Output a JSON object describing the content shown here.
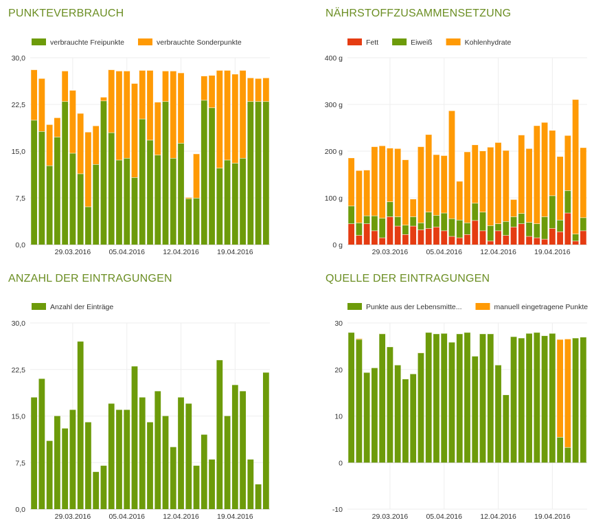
{
  "colors": {
    "green": "#6d9b0a",
    "orange": "#ff9a05",
    "red": "#e53c12",
    "title": "#6b8e23",
    "grid": "#eeeeee",
    "axis_text": "#333333"
  },
  "charts": [
    {
      "panel_title": "PUNKTEVERBRAUCH",
      "chart_data": {
        "type": "bar",
        "stacked": true,
        "y_ticks": [
          "0,0",
          "7,5",
          "15,0",
          "22,5",
          "30,0"
        ],
        "ylim": [
          0,
          30
        ],
        "x_ticks": [
          {
            "index": 5,
            "label": "29.03.2016"
          },
          {
            "index": 12,
            "label": "05.04.2016"
          },
          {
            "index": 19,
            "label": "12.04.2016"
          },
          {
            "index": 26,
            "label": "19.04.2016"
          }
        ],
        "series": [
          {
            "name": "verbrauchte Freipunkte",
            "color": "#6d9b0a",
            "values": [
              20.0,
              18.2,
              12.7,
              17.3,
              23.0,
              14.7,
              11.4,
              6.1,
              12.9,
              23.1,
              18.0,
              13.6,
              13.9,
              10.8,
              20.2,
              16.8,
              14.4,
              23.0,
              13.9,
              16.3,
              7.4,
              7.5,
              23.2,
              22.0,
              12.3,
              13.6,
              13.1,
              13.9,
              23.0,
              23.0,
              23.0
            ]
          },
          {
            "name": "verbrauchte Sonderpunkte",
            "color": "#ff9a05",
            "values": [
              8.1,
              8.5,
              6.6,
              3.1,
              4.9,
              10.1,
              9.7,
              12.0,
              6.2,
              0.6,
              10.1,
              14.3,
              14.0,
              15.1,
              7.8,
              11.2,
              8.5,
              4.9,
              14.0,
              11.3,
              0.2,
              7.1,
              3.9,
              5.2,
              15.7,
              14.4,
              14.3,
              14.1,
              3.8,
              3.7,
              3.8
            ]
          }
        ]
      }
    },
    {
      "panel_title": "NÄHRSTOFFZUSAMMENSETZUNG",
      "chart_data": {
        "type": "bar",
        "stacked": true,
        "y_ticks": [
          "0 g",
          "100 g",
          "200 g",
          "300 g",
          "400 g"
        ],
        "ylim": [
          0,
          400
        ],
        "x_ticks": [
          {
            "index": 5,
            "label": "29.03.2016"
          },
          {
            "index": 12,
            "label": "05.04.2016"
          },
          {
            "index": 19,
            "label": "12.04.2016"
          },
          {
            "index": 26,
            "label": "19.04.2016"
          }
        ],
        "series": [
          {
            "name": "Fett",
            "color": "#e53c12",
            "values": [
              45,
              20,
              45,
              30,
              15,
              60,
              40,
              22,
              40,
              32,
              35,
              38,
              30,
              18,
              15,
              22,
              52,
              30,
              8,
              30,
              20,
              38,
              45,
              18,
              15,
              12,
              35,
              28,
              68,
              8,
              30
            ]
          },
          {
            "name": "Eiweiß",
            "color": "#6d9b0a",
            "values": [
              38,
              27,
              17,
              32,
              42,
              32,
              20,
              20,
              20,
              15,
              35,
              25,
              38,
              38,
              38,
              25,
              37,
              40,
              33,
              15,
              30,
              22,
              22,
              30,
              30,
              48,
              70,
              25,
              48,
              15,
              28
            ]
          },
          {
            "name": "Kohlenhydrate",
            "color": "#ff9a05",
            "values": [
              103,
              112,
              98,
              148,
              155,
              115,
              146,
              140,
              38,
              163,
              166,
              130,
              123,
              231,
              83,
              152,
              125,
              131,
              168,
              174,
              152,
              37,
              168,
              158,
              210,
              202,
              140,
              136,
              118,
              288,
              150
            ]
          }
        ]
      }
    },
    {
      "panel_title": "ANZAHL DER EINTRAGUNGEN",
      "chart_data": {
        "type": "bar",
        "stacked": false,
        "y_ticks": [
          "0,0",
          "7,5",
          "15,0",
          "22,5",
          "30,0"
        ],
        "ylim": [
          0,
          30
        ],
        "x_ticks": [
          {
            "index": 5,
            "label": "29.03.2016"
          },
          {
            "index": 12,
            "label": "05.04.2016"
          },
          {
            "index": 19,
            "label": "12.04.2016"
          },
          {
            "index": 26,
            "label": "19.04.2016"
          }
        ],
        "series": [
          {
            "name": "Anzahl der Einträge",
            "color": "#6d9b0a",
            "values": [
              18,
              21,
              11,
              15,
              13,
              16,
              27,
              14,
              6,
              7,
              17,
              16,
              16,
              23,
              18,
              14,
              19,
              15,
              10,
              18,
              17,
              7,
              12,
              8,
              24,
              15,
              20,
              19,
              8,
              4,
              22
            ]
          }
        ]
      }
    },
    {
      "panel_title": "QUELLE DER EINTRAGUNGEN",
      "chart_data": {
        "type": "bar",
        "stacked": true,
        "y_ticks": [
          "-10",
          "0",
          "10",
          "20",
          "30"
        ],
        "ylim": [
          -10,
          30
        ],
        "x_ticks": [
          {
            "index": 5,
            "label": "29.03.2016"
          },
          {
            "index": 12,
            "label": "05.04.2016"
          },
          {
            "index": 19,
            "label": "12.04.2016"
          },
          {
            "index": 26,
            "label": "19.04.2016"
          }
        ],
        "series": [
          {
            "name": "Punkte aus der Lebensmitte...",
            "color": "#6d9b0a",
            "values": [
              28.0,
              26.5,
              19.4,
              20.4,
              27.7,
              24.9,
              21.0,
              18.0,
              19.1,
              23.6,
              28.0,
              27.7,
              27.8,
              25.9,
              27.7,
              28.0,
              22.9,
              27.7,
              27.7,
              21.0,
              14.6,
              27.1,
              26.8,
              27.8,
              28.0,
              27.3,
              27.8,
              5.5,
              3.3,
              26.8,
              27.0
            ]
          },
          {
            "name": "manuell eingetragene Punkte",
            "color": "#ff9a05",
            "values": [
              0,
              0.2,
              0,
              0,
              0.1,
              0,
              0,
              0,
              0,
              0.1,
              0,
              0,
              0,
              0,
              0,
              0,
              0,
              0,
              0,
              0,
              0,
              0,
              0,
              0,
              0,
              0,
              0,
              21.0,
              23.3,
              0,
              0
            ]
          }
        ]
      }
    }
  ]
}
